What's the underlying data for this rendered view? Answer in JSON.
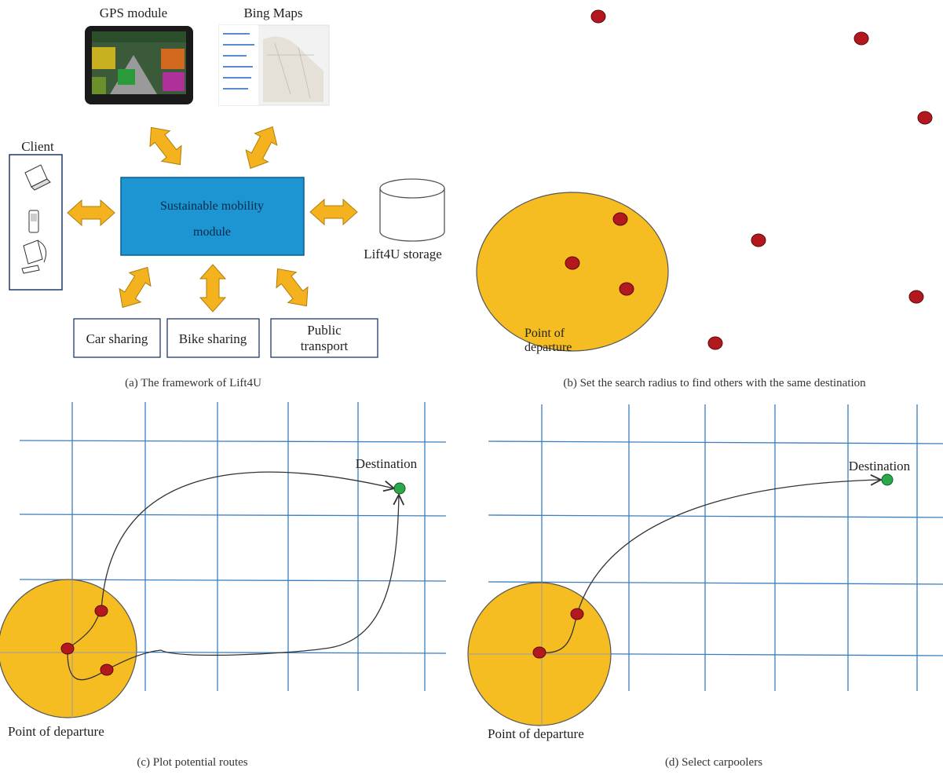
{
  "colors": {
    "arrow_fill": "#f5b21f",
    "arrow_stroke": "#b07d0a",
    "core_fill": "#1e95d3",
    "circle_fill": "#f5bd22",
    "circle_stroke": "#555555",
    "rider_dot": "#b3181e",
    "destination_dot": "#2aa84a",
    "grid_line": "#3a7fc1",
    "route_line": "#333333"
  },
  "panel_a": {
    "caption": "(a)  The framework of Lift4U",
    "gps_label": "GPS module",
    "bing_label": "Bing Maps",
    "client_label": "Client",
    "client_devices": [
      "laptop-icon",
      "phone-icon",
      "desktop-icon"
    ],
    "core_line1": "Sustainable mobility",
    "core_line2": "module",
    "storage_label": "Lift4U storage",
    "car_sharing": "Car sharing",
    "bike_sharing": "Bike sharing",
    "public_line1": "Public",
    "public_line2": "transport"
  },
  "panel_b": {
    "caption": "(b)  Set the search radius to find others with the same destination",
    "departure_line1": "Point of",
    "departure_line2": "departure"
  },
  "panel_c": {
    "caption": "(c)  Plot potential routes",
    "destination_label": "Destination",
    "departure_label": "Point of departure"
  },
  "panel_d": {
    "caption": "(d)  Select carpoolers",
    "destination_label": "Destination",
    "departure_label": "Point of departure"
  }
}
